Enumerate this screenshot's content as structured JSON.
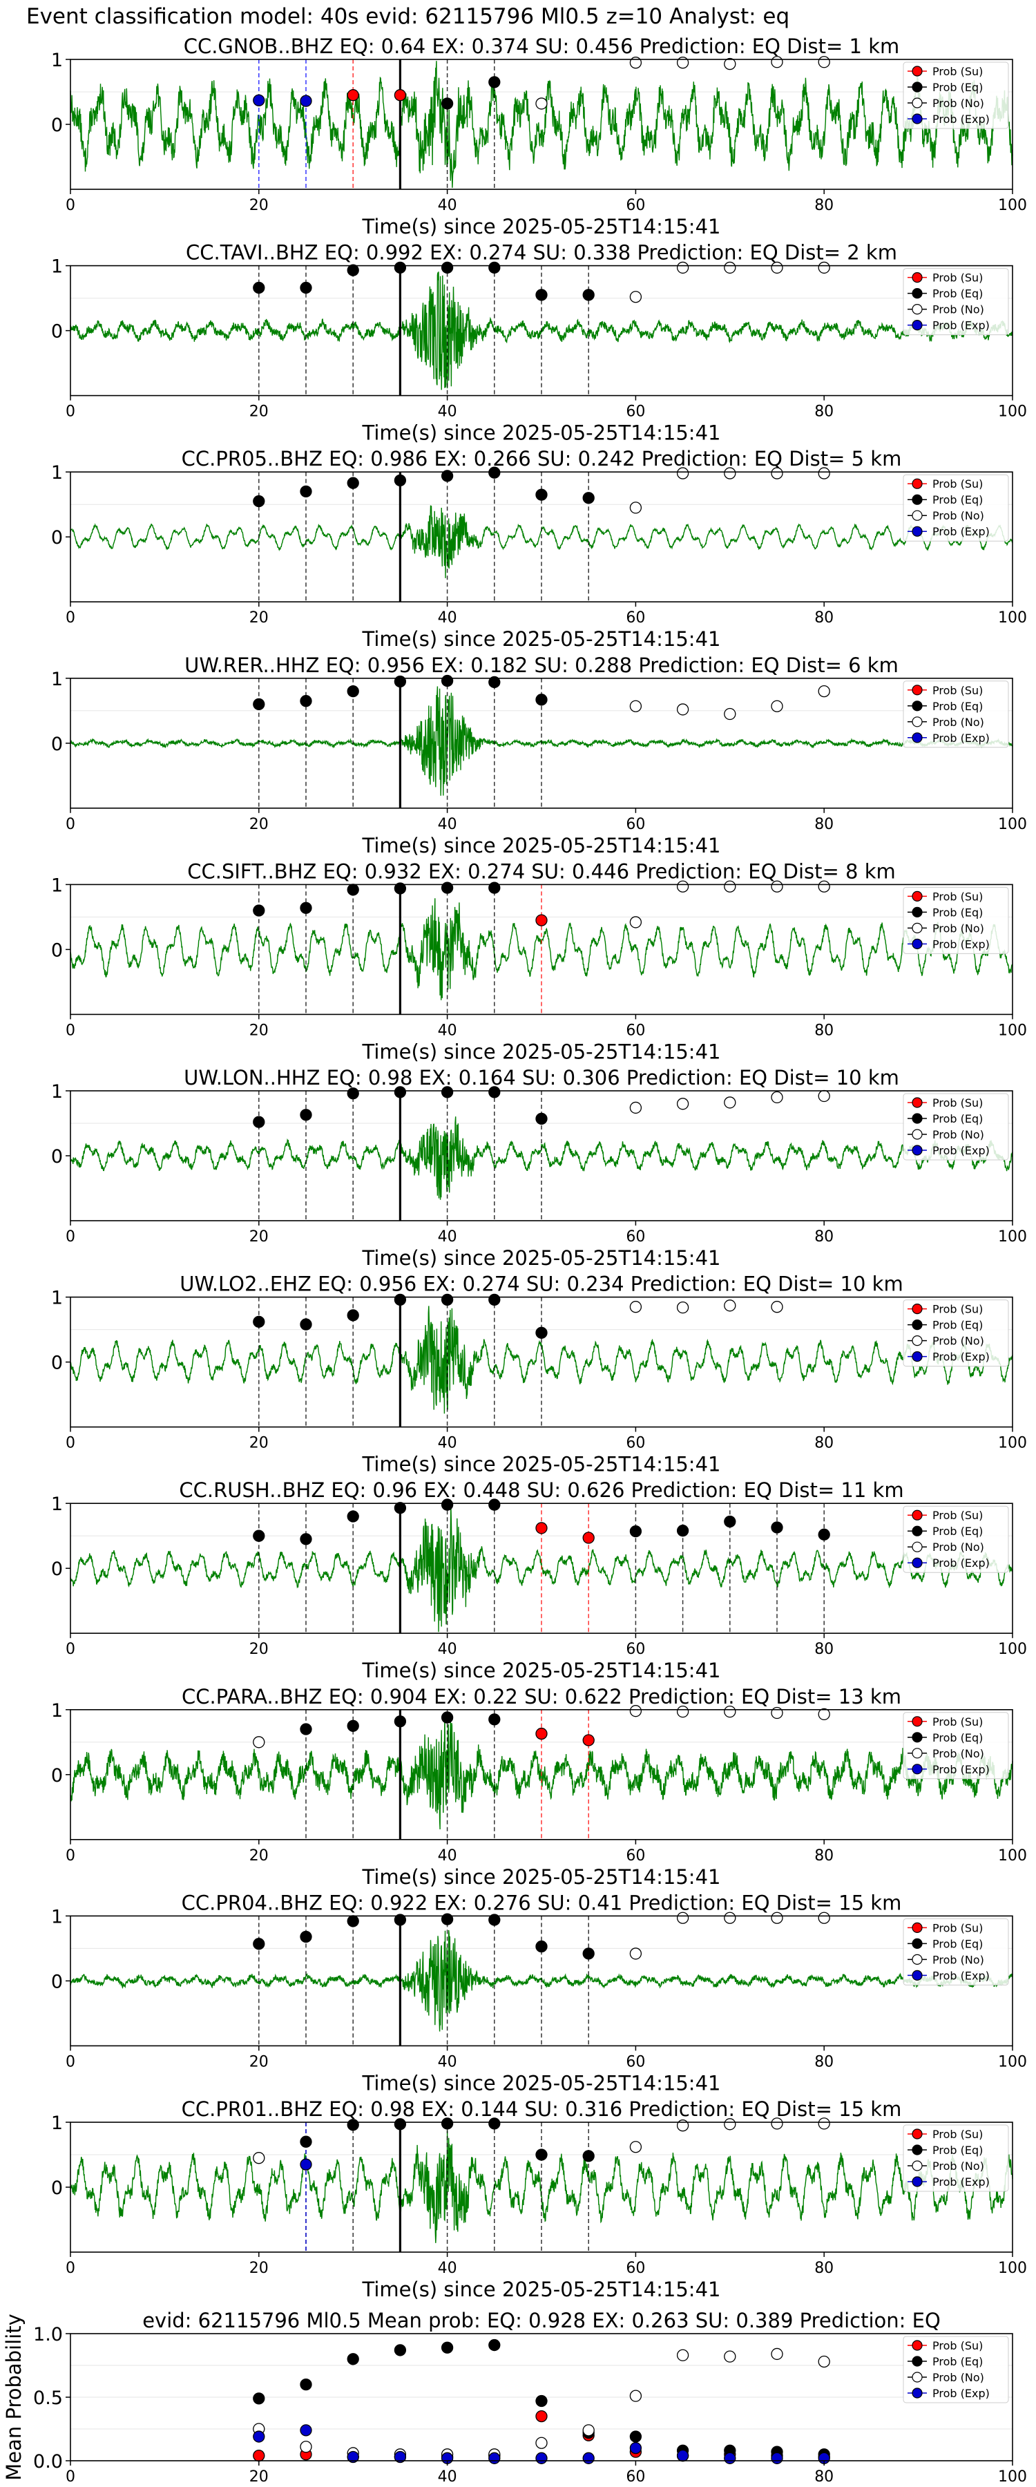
{
  "suptitle": "Event classification model: 40s evid: 62115796 Ml0.5 z=10 Analyst: eq",
  "legend_labels": [
    "Prob (Su)",
    "Prob (Eq)",
    "Prob (No)",
    "Prob (Exp)"
  ],
  "colors": {
    "waveform": "#008000",
    "su": "#ff0000",
    "eq": "#000000",
    "no": "#ffffff",
    "exp": "#0000cc",
    "line_su": "#ff0000",
    "line_eq": "#000000",
    "line_exp": "#0000ff"
  },
  "chart_data": [
    {
      "type": "line",
      "title": "CC.GNOB..BHZ   EQ: 0.64  EX: 0.374  SU: 0.456   Prediction: EQ    Dist= 1 km",
      "xlabel": "Time(s) since 2025-05-25T14:15:41",
      "xlim": [
        0,
        100
      ],
      "ylim": [
        -1,
        1
      ],
      "xticks": [
        "0",
        "20",
        "40",
        "60",
        "80",
        "100"
      ],
      "yticks": [
        "1",
        "0"
      ],
      "legend": "top-right",
      "series": [
        {
          "name": "Prob (Su)",
          "x": [
            30,
            35
          ],
          "values": [
            0.45,
            0.45
          ]
        },
        {
          "name": "Prob (Eq)",
          "x": [
            40,
            45
          ],
          "values": [
            0.32,
            0.65
          ]
        },
        {
          "name": "Prob (No)",
          "x": [
            50,
            60,
            65,
            70,
            75,
            80
          ],
          "values": [
            0.32,
            0.95,
            0.95,
            0.93,
            0.96,
            0.96
          ]
        },
        {
          "name": "Prob (Exp)",
          "x": [
            20,
            25
          ],
          "values": [
            0.37,
            0.36
          ]
        }
      ],
      "waveform": {
        "amplitude": 0.55,
        "noise": 0.5,
        "burst": 0.5
      },
      "p_pick": 35
    },
    {
      "type": "line",
      "title": "CC.TAVI..BHZ   EQ: 0.992  EX: 0.274  SU: 0.338   Prediction: EQ    Dist= 2 km",
      "xlabel": "Time(s) since 2025-05-25T14:15:41",
      "xlim": [
        0,
        100
      ],
      "ylim": [
        -1,
        1
      ],
      "xticks": [
        "0",
        "20",
        "40",
        "60",
        "80",
        "100"
      ],
      "yticks": [
        "1",
        "0"
      ],
      "legend": "top-right",
      "series": [
        {
          "name": "Prob (Su)",
          "x": [],
          "values": []
        },
        {
          "name": "Prob (Eq)",
          "x": [
            20,
            25,
            30,
            35,
            40,
            45,
            50,
            55
          ],
          "values": [
            0.66,
            0.66,
            0.93,
            0.97,
            0.97,
            0.97,
            0.55,
            0.55
          ]
        },
        {
          "name": "Prob (No)",
          "x": [
            60,
            65,
            70,
            75,
            80
          ],
          "values": [
            0.52,
            0.97,
            0.97,
            0.97,
            0.97
          ]
        },
        {
          "name": "Prob (Exp)",
          "x": [],
          "values": []
        }
      ],
      "waveform": {
        "amplitude": 0.12,
        "noise": 0.15,
        "burst": 0.9
      },
      "p_pick": 35
    },
    {
      "type": "line",
      "title": "CC.PR05..BHZ   EQ: 0.986  EX: 0.266  SU: 0.242   Prediction: EQ    Dist= 5 km",
      "xlabel": "Time(s) since 2025-05-25T14:15:41",
      "xlim": [
        0,
        100
      ],
      "ylim": [
        -1,
        1
      ],
      "xticks": [
        "0",
        "20",
        "40",
        "60",
        "80",
        "100"
      ],
      "yticks": [
        "1",
        "0"
      ],
      "legend": "top-right",
      "series": [
        {
          "name": "Prob (Su)",
          "x": [],
          "values": []
        },
        {
          "name": "Prob (Eq)",
          "x": [
            20,
            25,
            30,
            35,
            40,
            45,
            50,
            55
          ],
          "values": [
            0.55,
            0.7,
            0.83,
            0.87,
            0.94,
            0.99,
            0.65,
            0.6
          ]
        },
        {
          "name": "Prob (No)",
          "x": [
            60,
            65,
            70,
            75,
            80
          ],
          "values": [
            0.45,
            0.98,
            0.98,
            0.98,
            0.98
          ]
        },
        {
          "name": "Prob (Exp)",
          "x": [],
          "values": []
        }
      ],
      "waveform": {
        "amplitude": 0.18,
        "noise": 0.05,
        "burst": 0.45
      },
      "p_pick": 35
    },
    {
      "type": "line",
      "title": "UW.RER..HHZ   EQ: 0.956  EX: 0.182  SU: 0.288   Prediction: EQ    Dist= 6 km",
      "xlabel": "Time(s) since 2025-05-25T14:15:41",
      "xlim": [
        0,
        100
      ],
      "ylim": [
        -1,
        1
      ],
      "xticks": [
        "0",
        "20",
        "40",
        "60",
        "80",
        "100"
      ],
      "yticks": [
        "1",
        "0"
      ],
      "legend": "top-right",
      "series": [
        {
          "name": "Prob (Su)",
          "x": [],
          "values": []
        },
        {
          "name": "Prob (Eq)",
          "x": [
            20,
            25,
            30,
            35,
            40,
            45,
            50
          ],
          "values": [
            0.6,
            0.65,
            0.8,
            0.95,
            0.96,
            0.94,
            0.67
          ]
        },
        {
          "name": "Prob (No)",
          "x": [
            60,
            65,
            70,
            75,
            80
          ],
          "values": [
            0.57,
            0.52,
            0.45,
            0.57,
            0.8
          ]
        },
        {
          "name": "Prob (Exp)",
          "x": [],
          "values": []
        }
      ],
      "waveform": {
        "amplitude": 0.04,
        "noise": 0.06,
        "burst": 0.8
      },
      "p_pick": 35
    },
    {
      "type": "line",
      "title": "CC.SIFT..BHZ   EQ: 0.932  EX: 0.274  SU: 0.446   Prediction: EQ    Dist= 8 km",
      "xlabel": "Time(s) since 2025-05-25T14:15:41",
      "xlim": [
        0,
        100
      ],
      "ylim": [
        -1,
        1
      ],
      "xticks": [
        "0",
        "20",
        "40",
        "60",
        "80",
        "100"
      ],
      "yticks": [
        "1",
        "0"
      ],
      "legend": "top-right",
      "series": [
        {
          "name": "Prob (Su)",
          "x": [
            50
          ],
          "values": [
            0.45
          ]
        },
        {
          "name": "Prob (Eq)",
          "x": [
            20,
            25,
            30,
            35,
            40,
            45
          ],
          "values": [
            0.6,
            0.64,
            0.92,
            0.94,
            0.95,
            0.95
          ]
        },
        {
          "name": "Prob (No)",
          "x": [
            60,
            65,
            70,
            75,
            80
          ],
          "values": [
            0.42,
            0.97,
            0.97,
            0.97,
            0.97
          ]
        },
        {
          "name": "Prob (Exp)",
          "x": [],
          "values": []
        }
      ],
      "waveform": {
        "amplitude": 0.38,
        "noise": 0.12,
        "burst": 0.6
      },
      "p_pick": 35
    },
    {
      "type": "line",
      "title": "UW.LON..HHZ   EQ: 0.98  EX: 0.164  SU: 0.306   Prediction: EQ    Dist= 10 km",
      "xlabel": "Time(s) since 2025-05-25T14:15:41",
      "xlim": [
        0,
        100
      ],
      "ylim": [
        -1,
        1
      ],
      "xticks": [
        "0",
        "20",
        "40",
        "60",
        "80",
        "100"
      ],
      "yticks": [
        "1",
        "0"
      ],
      "legend": "top-right",
      "series": [
        {
          "name": "Prob (Su)",
          "x": [],
          "values": []
        },
        {
          "name": "Prob (Eq)",
          "x": [
            20,
            25,
            30,
            35,
            40,
            45,
            50
          ],
          "values": [
            0.52,
            0.63,
            0.96,
            0.98,
            0.98,
            0.98,
            0.57
          ]
        },
        {
          "name": "Prob (No)",
          "x": [
            60,
            65,
            70,
            75,
            80
          ],
          "values": [
            0.74,
            0.8,
            0.82,
            0.9,
            0.92
          ]
        },
        {
          "name": "Prob (Exp)",
          "x": [],
          "values": []
        }
      ],
      "waveform": {
        "amplitude": 0.2,
        "noise": 0.12,
        "burst": 0.5
      },
      "p_pick": 35
    },
    {
      "type": "line",
      "title": "UW.LO2..EHZ   EQ: 0.956  EX: 0.274  SU: 0.234   Prediction: EQ    Dist= 10 km",
      "xlabel": "Time(s) since 2025-05-25T14:15:41",
      "xlim": [
        0,
        100
      ],
      "ylim": [
        -1,
        1
      ],
      "xticks": [
        "0",
        "20",
        "40",
        "60",
        "80",
        "100"
      ],
      "yticks": [
        "1",
        "0"
      ],
      "legend": "top-right",
      "series": [
        {
          "name": "Prob (Su)",
          "x": [],
          "values": []
        },
        {
          "name": "Prob (Eq)",
          "x": [
            20,
            25,
            30,
            35,
            40,
            45,
            50
          ],
          "values": [
            0.62,
            0.58,
            0.72,
            0.96,
            0.96,
            0.96,
            0.45
          ]
        },
        {
          "name": "Prob (No)",
          "x": [
            60,
            65,
            70,
            75
          ],
          "values": [
            0.85,
            0.84,
            0.87,
            0.85
          ]
        },
        {
          "name": "Prob (Exp)",
          "x": [],
          "values": []
        }
      ],
      "waveform": {
        "amplitude": 0.3,
        "noise": 0.12,
        "burst": 0.7
      },
      "p_pick": 35
    },
    {
      "type": "line",
      "title": "CC.RUSH..BHZ   EQ: 0.96  EX: 0.448  SU: 0.626   Prediction: EQ    Dist= 11 km",
      "xlabel": "Time(s) since 2025-05-25T14:15:41",
      "xlim": [
        0,
        100
      ],
      "ylim": [
        -1,
        1
      ],
      "xticks": [
        "0",
        "20",
        "40",
        "60",
        "80",
        "100"
      ],
      "yticks": [
        "1",
        "0"
      ],
      "legend": "top-right",
      "series": [
        {
          "name": "Prob (Su)",
          "x": [
            50,
            55
          ],
          "values": [
            0.62,
            0.47
          ]
        },
        {
          "name": "Prob (Eq)",
          "x": [
            20,
            25,
            30,
            35,
            40,
            45,
            60,
            65,
            70,
            75,
            80
          ],
          "values": [
            0.5,
            0.45,
            0.8,
            0.93,
            0.98,
            0.98,
            0.57,
            0.58,
            0.72,
            0.63,
            0.52
          ]
        },
        {
          "name": "Prob (No)",
          "x": [],
          "values": []
        },
        {
          "name": "Prob (Exp)",
          "x": [],
          "values": []
        }
      ],
      "waveform": {
        "amplitude": 0.25,
        "noise": 0.12,
        "burst": 0.85
      },
      "p_pick": 35
    },
    {
      "type": "line",
      "title": "CC.PARA..BHZ   EQ: 0.904  EX: 0.22  SU: 0.622   Prediction: EQ    Dist= 13 km",
      "xlabel": "Time(s) since 2025-05-25T14:15:41",
      "xlim": [
        0,
        100
      ],
      "ylim": [
        -1,
        1
      ],
      "xticks": [
        "0",
        "20",
        "40",
        "60",
        "80",
        "100"
      ],
      "yticks": [
        "1",
        "0"
      ],
      "legend": "top-right",
      "series": [
        {
          "name": "Prob (Su)",
          "x": [
            50,
            55
          ],
          "values": [
            0.63,
            0.53
          ]
        },
        {
          "name": "Prob (Eq)",
          "x": [
            25,
            30,
            35,
            40,
            45
          ],
          "values": [
            0.7,
            0.75,
            0.82,
            0.88,
            0.85
          ]
        },
        {
          "name": "Prob (No)",
          "x": [
            20,
            60,
            65,
            70,
            75,
            80
          ],
          "values": [
            0.5,
            0.98,
            0.97,
            0.97,
            0.95,
            0.93
          ]
        },
        {
          "name": "Prob (Exp)",
          "x": [],
          "values": []
        }
      ],
      "waveform": {
        "amplitude": 0.28,
        "noise": 0.35,
        "burst": 0.7
      },
      "p_pick": 35
    },
    {
      "type": "line",
      "title": "CC.PR04..BHZ   EQ: 0.922  EX: 0.276  SU: 0.41   Prediction: EQ    Dist= 15 km",
      "xlabel": "Time(s) since 2025-05-25T14:15:41",
      "xlim": [
        0,
        100
      ],
      "ylim": [
        -1,
        1
      ],
      "xticks": [
        "0",
        "20",
        "40",
        "60",
        "80",
        "100"
      ],
      "yticks": [
        "1",
        "0"
      ],
      "legend": "top-right",
      "series": [
        {
          "name": "Prob (Su)",
          "x": [],
          "values": []
        },
        {
          "name": "Prob (Eq)",
          "x": [
            20,
            25,
            30,
            35,
            40,
            45,
            50,
            55
          ],
          "values": [
            0.57,
            0.68,
            0.92,
            0.94,
            0.95,
            0.94,
            0.53,
            0.42
          ]
        },
        {
          "name": "Prob (No)",
          "x": [
            60,
            65,
            70,
            75,
            80
          ],
          "values": [
            0.42,
            0.97,
            0.97,
            0.97,
            0.97
          ]
        },
        {
          "name": "Prob (Exp)",
          "x": [],
          "values": []
        }
      ],
      "waveform": {
        "amplitude": 0.07,
        "noise": 0.1,
        "burst": 0.75
      },
      "p_pick": 35
    },
    {
      "type": "line",
      "title": "CC.PR01..BHZ   EQ: 0.98  EX: 0.144  SU: 0.316   Prediction: EQ    Dist= 15 km",
      "xlabel": "Time(s) since 2025-05-25T14:15:41",
      "xlim": [
        0,
        100
      ],
      "ylim": [
        -1,
        1
      ],
      "xticks": [
        "0",
        "20",
        "40",
        "60",
        "80",
        "100"
      ],
      "yticks": [
        "1",
        "0"
      ],
      "legend": "top-right",
      "series": [
        {
          "name": "Prob (Su)",
          "x": [],
          "values": []
        },
        {
          "name": "Prob (Eq)",
          "x": [
            25,
            30,
            35,
            40,
            45,
            50,
            55
          ],
          "values": [
            0.7,
            0.96,
            0.97,
            0.98,
            0.98,
            0.5,
            0.48
          ]
        },
        {
          "name": "Prob (No)",
          "x": [
            20,
            60,
            65,
            70,
            75,
            80
          ],
          "values": [
            0.45,
            0.62,
            0.95,
            0.97,
            0.98,
            0.98
          ]
        },
        {
          "name": "Prob (Exp)",
          "x": [
            25
          ],
          "values": [
            0.35
          ]
        }
      ],
      "waveform": {
        "amplitude": 0.45,
        "noise": 0.25,
        "burst": 0.6
      },
      "p_pick": 35
    },
    {
      "type": "scatter",
      "title": "evid: 62115796  Ml0.5   Mean prob:   EQ: 0.928  EX: 0.263  SU: 0.389   Prediction: EQ",
      "ylabel": "Mean Probability",
      "xlim": [
        0,
        100
      ],
      "ylim": [
        0,
        1
      ],
      "xticks": [
        "0",
        "20",
        "40",
        "60",
        "80",
        "100"
      ],
      "yticks": [
        "1.0",
        "0.5",
        "0.0"
      ],
      "legend": "top-right",
      "series": [
        {
          "name": "Prob (Su)",
          "x": [
            20,
            25,
            30,
            35,
            40,
            45,
            50,
            55,
            60,
            65,
            70,
            75,
            80
          ],
          "values": [
            0.04,
            0.05,
            0.03,
            0.03,
            0.03,
            0.04,
            0.35,
            0.2,
            0.07,
            0.04,
            0.05,
            0.04,
            0.03
          ]
        },
        {
          "name": "Prob (Eq)",
          "x": [
            20,
            25,
            30,
            35,
            40,
            45,
            50,
            55,
            60,
            65,
            70,
            75,
            80
          ],
          "values": [
            0.49,
            0.6,
            0.8,
            0.87,
            0.89,
            0.91,
            0.47,
            0.22,
            0.19,
            0.08,
            0.08,
            0.07,
            0.05
          ]
        },
        {
          "name": "Prob (No)",
          "x": [
            20,
            25,
            30,
            35,
            40,
            45,
            50,
            55,
            60,
            65,
            70,
            75,
            80
          ],
          "values": [
            0.25,
            0.11,
            0.06,
            0.05,
            0.05,
            0.05,
            0.14,
            0.24,
            0.51,
            0.83,
            0.82,
            0.84,
            0.78
          ]
        },
        {
          "name": "Prob (Exp)",
          "x": [
            20,
            25,
            30,
            35,
            40,
            45,
            50,
            55,
            60,
            65,
            70,
            75,
            80
          ],
          "values": [
            0.19,
            0.24,
            0.03,
            0.03,
            0.02,
            0.02,
            0.02,
            0.02,
            0.1,
            0.04,
            0.02,
            0.02,
            0.02
          ]
        }
      ]
    }
  ]
}
